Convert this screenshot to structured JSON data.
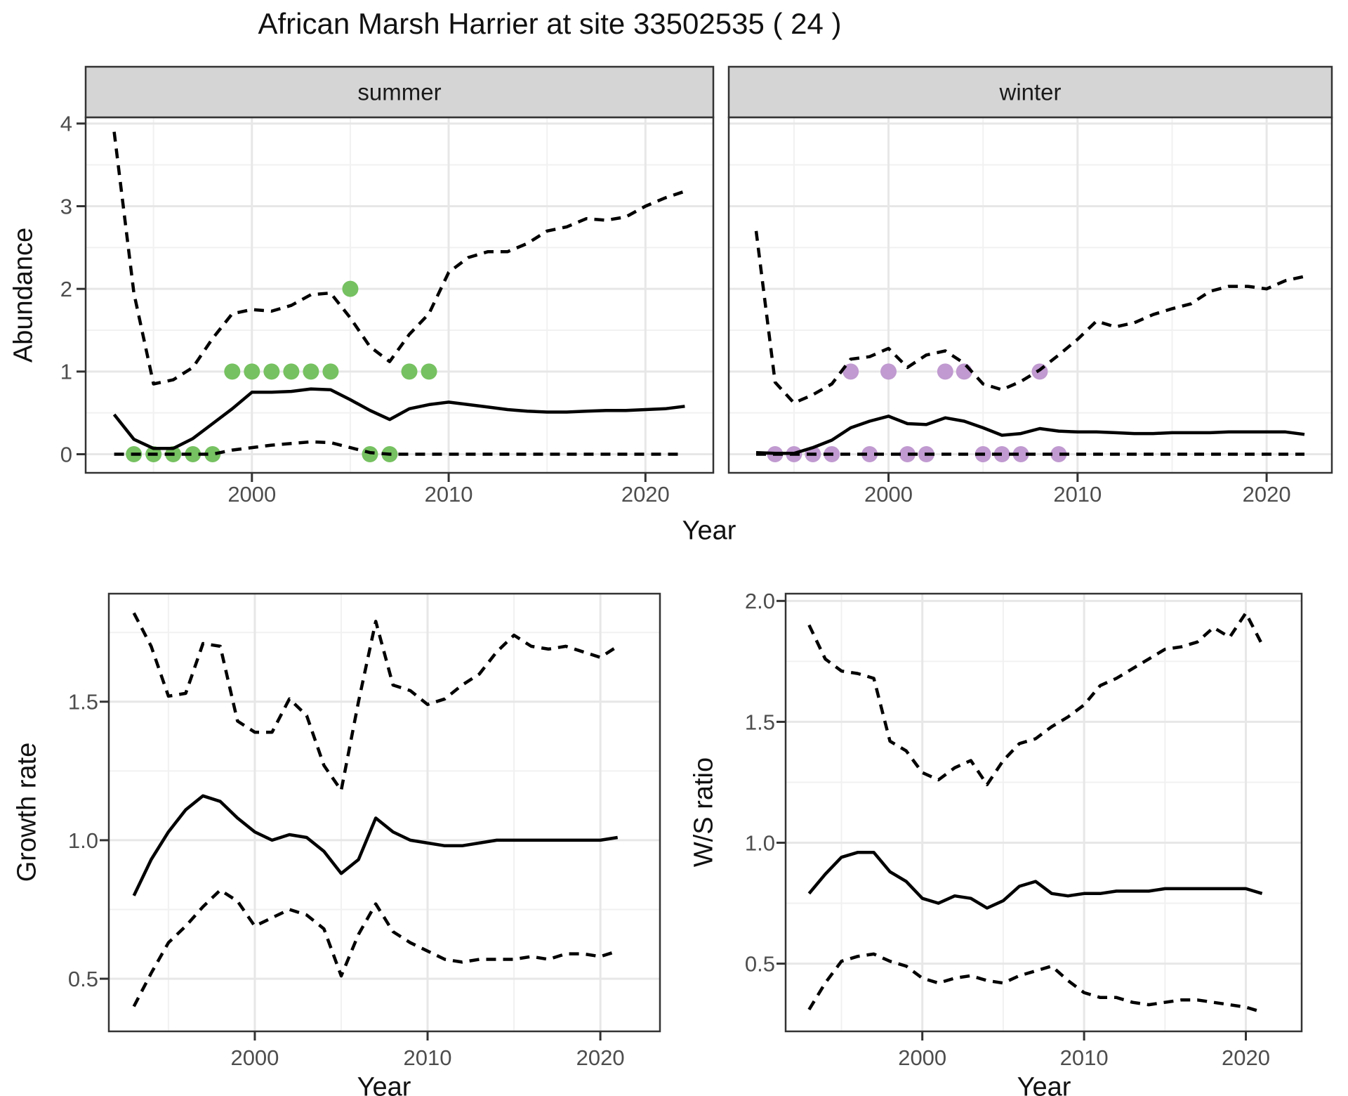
{
  "title": "African Marsh Harrier at site 33502535 ( 24 )",
  "colors": {
    "summer_points": "#76c161",
    "winter_points": "#c09ad0",
    "line": "#000000",
    "strip_fill": "#d5d5d5",
    "strip_border": "#333333",
    "panel_border": "#333333",
    "grid_major": "#e7e7e7",
    "grid_minor": "#f1f1f1",
    "tick_text": "#4d4d4d",
    "title_text": "#111111"
  },
  "chart_data": [
    {
      "type": "line",
      "id": "abundance-summer",
      "facet_label": "summer",
      "xlabel": "Year",
      "ylabel": "Abundance",
      "x": [
        1993,
        1994,
        1995,
        1996,
        1997,
        1998,
        1999,
        2000,
        2001,
        2002,
        2003,
        2004,
        2005,
        2006,
        2007,
        2008,
        2009,
        2010,
        2011,
        2012,
        2013,
        2014,
        2015,
        2016,
        2017,
        2018,
        2019,
        2020,
        2021,
        2022
      ],
      "xlim": [
        1991.55,
        2023.45
      ],
      "ylim": [
        -0.225,
        4.075
      ],
      "x_ticks": {
        "values": [
          2000,
          2010,
          2020
        ],
        "labels": [
          "2000",
          "2010",
          "2020"
        ],
        "minor": [
          1995,
          2005,
          2015
        ]
      },
      "y_ticks": {
        "values": [
          0,
          1,
          2,
          3,
          4
        ],
        "labels": [
          "0",
          "1",
          "2",
          "3",
          "4"
        ],
        "minor": [
          0.5,
          1.5,
          2.5,
          3.5
        ]
      },
      "series": [
        {
          "name": "upper-95ci",
          "style": "dashed",
          "values": [
            3.9,
            1.95,
            0.85,
            0.9,
            1.05,
            1.4,
            1.7,
            1.75,
            1.73,
            1.8,
            1.93,
            1.95,
            1.65,
            1.3,
            1.12,
            1.45,
            1.7,
            2.2,
            2.38,
            2.45,
            2.45,
            2.55,
            2.7,
            2.75,
            2.85,
            2.83,
            2.87,
            3.0,
            3.1,
            3.18
          ]
        },
        {
          "name": "mean",
          "style": "solid",
          "values": [
            0.48,
            0.18,
            0.07,
            0.07,
            0.19,
            0.37,
            0.55,
            0.75,
            0.75,
            0.76,
            0.79,
            0.78,
            0.66,
            0.53,
            0.42,
            0.55,
            0.6,
            0.63,
            0.6,
            0.57,
            0.54,
            0.52,
            0.51,
            0.51,
            0.52,
            0.53,
            0.53,
            0.54,
            0.55,
            0.58
          ]
        },
        {
          "name": "lower-95ci",
          "style": "dashed",
          "values": [
            0,
            0,
            0,
            0,
            0,
            0,
            0.05,
            0.08,
            0.11,
            0.13,
            0.15,
            0.14,
            0.08,
            0.02,
            0,
            0,
            0,
            0,
            0,
            0,
            0,
            0,
            0,
            0,
            0,
            0,
            0,
            0,
            0,
            0
          ]
        }
      ],
      "points": {
        "name": "observed-counts-summer",
        "color": "#76c161",
        "x": [
          1994,
          1995,
          1996,
          1997,
          1998,
          1999,
          2000,
          2001,
          2002,
          2003,
          2004,
          2005,
          2006,
          2007,
          2008,
          2009
        ],
        "y": [
          0,
          0,
          0,
          0,
          0,
          1,
          1,
          1,
          1,
          1,
          1,
          2,
          0,
          0,
          1,
          1
        ]
      }
    },
    {
      "type": "line",
      "id": "abundance-winter",
      "facet_label": "winter",
      "xlabel": "Year",
      "ylabel": "Abundance",
      "x": [
        1993,
        1994,
        1995,
        1996,
        1997,
        1998,
        1999,
        2000,
        2001,
        2002,
        2003,
        2004,
        2005,
        2006,
        2007,
        2008,
        2009,
        2010,
        2011,
        2012,
        2013,
        2014,
        2015,
        2016,
        2017,
        2018,
        2019,
        2020,
        2021,
        2022
      ],
      "xlim": [
        1991.55,
        2023.45
      ],
      "ylim": [
        -0.225,
        4.075
      ],
      "x_ticks": {
        "values": [
          2000,
          2010,
          2020
        ],
        "labels": [
          "2000",
          "2010",
          "2020"
        ],
        "minor": [
          1995,
          2005,
          2015
        ]
      },
      "y_ticks": {
        "values": [
          0,
          1,
          2,
          3,
          4
        ],
        "labels": [
          "0",
          "1",
          "2",
          "3",
          "4"
        ],
        "minor": [
          0.5,
          1.5,
          2.5,
          3.5
        ]
      },
      "series": [
        {
          "name": "upper-95ci",
          "style": "dashed",
          "values": [
            2.7,
            0.87,
            0.62,
            0.72,
            0.85,
            1.15,
            1.18,
            1.28,
            1.05,
            1.2,
            1.25,
            1.1,
            0.85,
            0.78,
            0.88,
            1.02,
            1.2,
            1.39,
            1.61,
            1.54,
            1.59,
            1.69,
            1.76,
            1.82,
            1.97,
            2.03,
            2.03,
            2.0,
            2.1,
            2.15
          ]
        },
        {
          "name": "mean",
          "style": "solid",
          "values": [
            0.02,
            0.01,
            0.01,
            0.08,
            0.17,
            0.32,
            0.4,
            0.46,
            0.37,
            0.36,
            0.44,
            0.4,
            0.32,
            0.23,
            0.25,
            0.31,
            0.28,
            0.27,
            0.27,
            0.26,
            0.25,
            0.25,
            0.26,
            0.26,
            0.26,
            0.27,
            0.27,
            0.27,
            0.27,
            0.24
          ]
        },
        {
          "name": "lower-95ci",
          "style": "dashed",
          "values": [
            0,
            0,
            0,
            0,
            0,
            0,
            0,
            0,
            0,
            0,
            0,
            0,
            0,
            0,
            0,
            0,
            0,
            0,
            0,
            0,
            0,
            0,
            0,
            0,
            0,
            0,
            0,
            0,
            0,
            0
          ]
        }
      ],
      "points": {
        "name": "observed-counts-winter",
        "color": "#c09ad0",
        "x": [
          1994,
          1995,
          1996,
          1997,
          1998,
          1999,
          2000,
          2001,
          2002,
          2003,
          2004,
          2005,
          2006,
          2007,
          2008,
          2009
        ],
        "y": [
          0,
          0,
          0,
          0,
          1,
          0,
          1,
          0,
          0,
          1,
          1,
          0,
          0,
          0,
          1,
          0
        ]
      }
    },
    {
      "type": "line",
      "id": "growth-rate",
      "facet_label": "",
      "xlabel": "Year",
      "ylabel": "Growth rate",
      "x": [
        1993,
        1994,
        1995,
        1996,
        1997,
        1998,
        1999,
        2000,
        2001,
        2002,
        2003,
        2004,
        2005,
        2006,
        2007,
        2008,
        2009,
        2010,
        2011,
        2012,
        2013,
        2014,
        2015,
        2016,
        2017,
        2018,
        2019,
        2020,
        2021
      ],
      "xlim": [
        1991.55,
        2023.45
      ],
      "ylim": [
        0.31,
        1.89
      ],
      "x_ticks": {
        "values": [
          2000,
          2010,
          2020
        ],
        "labels": [
          "2000",
          "2010",
          "2020"
        ],
        "minor": [
          1995,
          2005,
          2015
        ]
      },
      "y_ticks": {
        "values": [
          0.5,
          1.0,
          1.5
        ],
        "labels": [
          "0.5",
          "1.0",
          "1.5"
        ],
        "minor": [
          0.75,
          1.25,
          1.75
        ]
      },
      "series": [
        {
          "name": "upper-95ci",
          "style": "dashed",
          "values": [
            1.82,
            1.7,
            1.52,
            1.53,
            1.71,
            1.7,
            1.43,
            1.39,
            1.39,
            1.51,
            1.45,
            1.27,
            1.18,
            1.5,
            1.79,
            1.56,
            1.54,
            1.49,
            1.51,
            1.56,
            1.6,
            1.68,
            1.74,
            1.7,
            1.69,
            1.7,
            1.68,
            1.66,
            1.7
          ]
        },
        {
          "name": "mean",
          "style": "solid",
          "values": [
            0.8,
            0.93,
            1.03,
            1.11,
            1.16,
            1.14,
            1.08,
            1.03,
            1.0,
            1.02,
            1.01,
            0.96,
            0.88,
            0.93,
            1.08,
            1.03,
            1.0,
            0.99,
            0.98,
            0.98,
            0.99,
            1.0,
            1.0,
            1.0,
            1.0,
            1.0,
            1.0,
            1.0,
            1.01
          ]
        },
        {
          "name": "lower-95ci",
          "style": "dashed",
          "values": [
            0.4,
            0.52,
            0.63,
            0.69,
            0.76,
            0.82,
            0.78,
            0.69,
            0.72,
            0.75,
            0.73,
            0.68,
            0.51,
            0.66,
            0.77,
            0.67,
            0.63,
            0.6,
            0.57,
            0.56,
            0.57,
            0.57,
            0.57,
            0.58,
            0.57,
            0.59,
            0.59,
            0.58,
            0.6
          ]
        }
      ],
      "points": null
    },
    {
      "type": "line",
      "id": "ws-ratio",
      "facet_label": "",
      "xlabel": "Year",
      "ylabel": "W/S ratio",
      "x": [
        1993,
        1994,
        1995,
        1996,
        1997,
        1998,
        1999,
        2000,
        2001,
        2002,
        2003,
        2004,
        2005,
        2006,
        2007,
        2008,
        2009,
        2010,
        2011,
        2012,
        2013,
        2014,
        2015,
        2016,
        2017,
        2018,
        2019,
        2020,
        2021
      ],
      "xlim": [
        1991.55,
        2023.45
      ],
      "ylim": [
        0.22,
        2.03
      ],
      "x_ticks": {
        "values": [
          2000,
          2010,
          2020
        ],
        "labels": [
          "2000",
          "2010",
          "2020"
        ],
        "minor": [
          1995,
          2005,
          2015
        ]
      },
      "y_ticks": {
        "values": [
          0.5,
          1.0,
          1.5,
          2.0
        ],
        "labels": [
          "0.5",
          "1.0",
          "1.5",
          "2.0"
        ],
        "minor": [
          0.75,
          1.25,
          1.75
        ]
      },
      "series": [
        {
          "name": "upper-95ci",
          "style": "dashed",
          "values": [
            1.9,
            1.76,
            1.71,
            1.7,
            1.68,
            1.42,
            1.38,
            1.29,
            1.26,
            1.31,
            1.34,
            1.24,
            1.34,
            1.41,
            1.43,
            1.48,
            1.52,
            1.57,
            1.65,
            1.68,
            1.72,
            1.76,
            1.8,
            1.81,
            1.83,
            1.89,
            1.85,
            1.95,
            1.82
          ]
        },
        {
          "name": "mean",
          "style": "solid",
          "values": [
            0.79,
            0.87,
            0.94,
            0.96,
            0.96,
            0.88,
            0.84,
            0.77,
            0.75,
            0.78,
            0.77,
            0.73,
            0.76,
            0.82,
            0.84,
            0.79,
            0.78,
            0.79,
            0.79,
            0.8,
            0.8,
            0.8,
            0.81,
            0.81,
            0.81,
            0.81,
            0.81,
            0.81,
            0.79
          ]
        },
        {
          "name": "lower-95ci",
          "style": "dashed",
          "values": [
            0.31,
            0.42,
            0.51,
            0.53,
            0.54,
            0.51,
            0.49,
            0.44,
            0.42,
            0.44,
            0.45,
            0.43,
            0.42,
            0.45,
            0.47,
            0.49,
            0.43,
            0.38,
            0.36,
            0.36,
            0.34,
            0.33,
            0.34,
            0.35,
            0.35,
            0.34,
            0.33,
            0.32,
            0.3
          ]
        }
      ],
      "points": null
    }
  ]
}
